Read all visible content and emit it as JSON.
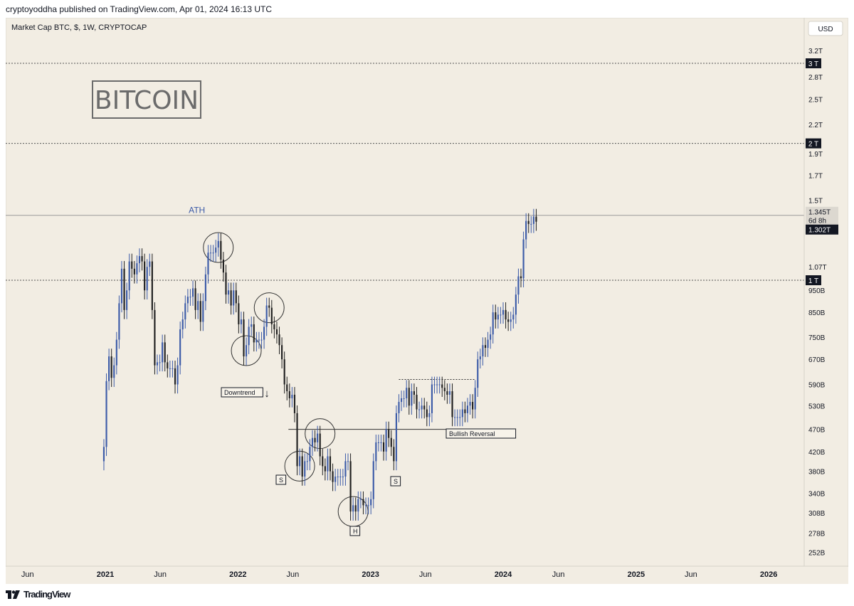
{
  "header": {
    "published": "cryptoyoddha published on TradingView.com, Apr 01, 2024 16:13 UTC"
  },
  "footer": {
    "logo_icon": "tradingview-logo-icon",
    "brand": "TradingView"
  },
  "chart_data": {
    "type": "candlestick",
    "symbol_line": "Market Cap BTC, $, 1W, CRYPTOCAP",
    "currency": "USD",
    "watermark": "BITCOIN",
    "scale": "log",
    "grid": false,
    "y_ticks": [
      "3.2T",
      "2.8T",
      "2.5T",
      "2.2T",
      "1.9T",
      "1.7T",
      "1.5T",
      "1.07T",
      "950B",
      "850B",
      "750B",
      "670B",
      "590B",
      "530B",
      "470B",
      "420B",
      "380B",
      "340B",
      "308B",
      "278B",
      "252B"
    ],
    "y_tick_values": [
      3.2,
      2.8,
      2.5,
      2.2,
      1.9,
      1.7,
      1.5,
      1.07,
      0.95,
      0.85,
      0.75,
      0.67,
      0.59,
      0.53,
      0.47,
      0.42,
      0.38,
      0.34,
      0.308,
      0.278,
      0.252
    ],
    "x_ticks": [
      {
        "label": "Jun",
        "date": "2020-06-01",
        "bold": false
      },
      {
        "label": "2021",
        "date": "2021-01-01",
        "bold": true
      },
      {
        "label": "Jun",
        "date": "2021-06-01",
        "bold": false
      },
      {
        "label": "2022",
        "date": "2022-01-01",
        "bold": true
      },
      {
        "label": "Jun",
        "date": "2022-06-01",
        "bold": false
      },
      {
        "label": "2023",
        "date": "2023-01-01",
        "bold": true
      },
      {
        "label": "Jun",
        "date": "2023-06-01",
        "bold": false
      },
      {
        "label": "2024",
        "date": "2024-01-01",
        "bold": true
      },
      {
        "label": "Jun",
        "date": "2024-06-01",
        "bold": false
      },
      {
        "label": "2025",
        "date": "2025-01-01",
        "bold": true
      },
      {
        "label": "Jun",
        "date": "2025-06-01",
        "bold": false
      },
      {
        "label": "2026",
        "date": "2026-01-01",
        "bold": true
      }
    ],
    "levels": [
      {
        "label": "3 T",
        "value": 3.0,
        "style": "dotted"
      },
      {
        "label": "2 T",
        "value": 2.0,
        "style": "dotted"
      },
      {
        "label": "1 T",
        "value": 1.0,
        "style": "dotted"
      }
    ],
    "last_price": {
      "label": "1.345T",
      "value": 1.345,
      "countdown": "6d 8h"
    },
    "marker_price": {
      "label": "1.302T",
      "value": 1.302
    },
    "up_color": "#3c5ba8",
    "down_color": "#202020",
    "annotations": {
      "ath": "ATH",
      "downtrend": "Downtrend",
      "bullish_reversal": "Bullish Reversal",
      "shoulder_left": "S",
      "head": "H",
      "shoulder_right": "S"
    },
    "weekly_closes": [
      {
        "date": "2020-12-28",
        "close": 0.43
      },
      {
        "date": "2021-01-04",
        "close": 0.6
      },
      {
        "date": "2021-01-11",
        "close": 0.68
      },
      {
        "date": "2021-01-18",
        "close": 0.61
      },
      {
        "date": "2021-01-25",
        "close": 0.65
      },
      {
        "date": "2021-02-01",
        "close": 0.74
      },
      {
        "date": "2021-02-08",
        "close": 0.89
      },
      {
        "date": "2021-02-15",
        "close": 1.06
      },
      {
        "date": "2021-02-22",
        "close": 0.86
      },
      {
        "date": "2021-03-01",
        "close": 0.95
      },
      {
        "date": "2021-03-08",
        "close": 1.1
      },
      {
        "date": "2021-03-15",
        "close": 1.06
      },
      {
        "date": "2021-03-22",
        "close": 1.03
      },
      {
        "date": "2021-03-29",
        "close": 1.09
      },
      {
        "date": "2021-04-05",
        "close": 1.13
      },
      {
        "date": "2021-04-12",
        "close": 1.1
      },
      {
        "date": "2021-04-19",
        "close": 0.95
      },
      {
        "date": "2021-04-26",
        "close": 1.07
      },
      {
        "date": "2021-05-03",
        "close": 1.1
      },
      {
        "date": "2021-05-10",
        "close": 0.86
      },
      {
        "date": "2021-05-17",
        "close": 0.65
      },
      {
        "date": "2021-05-24",
        "close": 0.66
      },
      {
        "date": "2021-05-31",
        "close": 0.66
      },
      {
        "date": "2021-06-07",
        "close": 0.73
      },
      {
        "date": "2021-06-14",
        "close": 0.66
      },
      {
        "date": "2021-06-21",
        "close": 0.64
      },
      {
        "date": "2021-06-28",
        "close": 0.64
      },
      {
        "date": "2021-07-05",
        "close": 0.64
      },
      {
        "date": "2021-07-12",
        "close": 0.59
      },
      {
        "date": "2021-07-19",
        "close": 0.65
      },
      {
        "date": "2021-07-26",
        "close": 0.78
      },
      {
        "date": "2021-08-02",
        "close": 0.82
      },
      {
        "date": "2021-08-09",
        "close": 0.89
      },
      {
        "date": "2021-08-16",
        "close": 0.92
      },
      {
        "date": "2021-08-23",
        "close": 0.92
      },
      {
        "date": "2021-08-30",
        "close": 0.96
      },
      {
        "date": "2021-09-06",
        "close": 0.86
      },
      {
        "date": "2021-09-13",
        "close": 0.9
      },
      {
        "date": "2021-09-20",
        "close": 0.81
      },
      {
        "date": "2021-09-27",
        "close": 0.9
      },
      {
        "date": "2021-10-04",
        "close": 1.03
      },
      {
        "date": "2021-10-11",
        "close": 1.15
      },
      {
        "date": "2021-10-18",
        "close": 1.15
      },
      {
        "date": "2021-10-25",
        "close": 1.15
      },
      {
        "date": "2021-11-01",
        "close": 1.18
      },
      {
        "date": "2021-11-08",
        "close": 1.22
      },
      {
        "date": "2021-11-15",
        "close": 1.11
      },
      {
        "date": "2021-11-22",
        "close": 1.04
      },
      {
        "date": "2021-11-29",
        "close": 0.93
      },
      {
        "date": "2021-12-06",
        "close": 0.95
      },
      {
        "date": "2021-12-13",
        "close": 0.88
      },
      {
        "date": "2021-12-20",
        "close": 0.95
      },
      {
        "date": "2021-12-27",
        "close": 0.89
      },
      {
        "date": "2022-01-03",
        "close": 0.8
      },
      {
        "date": "2022-01-10",
        "close": 0.82
      },
      {
        "date": "2022-01-17",
        "close": 0.68
      },
      {
        "date": "2022-01-24",
        "close": 0.72
      },
      {
        "date": "2022-01-31",
        "close": 0.79
      },
      {
        "date": "2022-02-07",
        "close": 0.8
      },
      {
        "date": "2022-02-14",
        "close": 0.73
      },
      {
        "date": "2022-02-21",
        "close": 0.74
      },
      {
        "date": "2022-02-28",
        "close": 0.74
      },
      {
        "date": "2022-03-07",
        "close": 0.74
      },
      {
        "date": "2022-03-14",
        "close": 0.79
      },
      {
        "date": "2022-03-21",
        "close": 0.88
      },
      {
        "date": "2022-03-28",
        "close": 0.87
      },
      {
        "date": "2022-04-04",
        "close": 0.8
      },
      {
        "date": "2022-04-11",
        "close": 0.78
      },
      {
        "date": "2022-04-18",
        "close": 0.76
      },
      {
        "date": "2022-04-25",
        "close": 0.72
      },
      {
        "date": "2022-05-02",
        "close": 0.67
      },
      {
        "date": "2022-05-09",
        "close": 0.59
      },
      {
        "date": "2022-05-16",
        "close": 0.57
      },
      {
        "date": "2022-05-23",
        "close": 0.55
      },
      {
        "date": "2022-05-30",
        "close": 0.56
      },
      {
        "date": "2022-06-06",
        "close": 0.51
      },
      {
        "date": "2022-06-13",
        "close": 0.39
      },
      {
        "date": "2022-06-20",
        "close": 0.41
      },
      {
        "date": "2022-06-27",
        "close": 0.37
      },
      {
        "date": "2022-07-04",
        "close": 0.4
      },
      {
        "date": "2022-07-11",
        "close": 0.4
      },
      {
        "date": "2022-07-18",
        "close": 0.43
      },
      {
        "date": "2022-07-25",
        "close": 0.45
      },
      {
        "date": "2022-08-01",
        "close": 0.44
      },
      {
        "date": "2022-08-08",
        "close": 0.46
      },
      {
        "date": "2022-08-15",
        "close": 0.41
      },
      {
        "date": "2022-08-22",
        "close": 0.39
      },
      {
        "date": "2022-08-29",
        "close": 0.38
      },
      {
        "date": "2022-09-05",
        "close": 0.41
      },
      {
        "date": "2022-09-12",
        "close": 0.38
      },
      {
        "date": "2022-09-19",
        "close": 0.36
      },
      {
        "date": "2022-09-26",
        "close": 0.37
      },
      {
        "date": "2022-10-03",
        "close": 0.37
      },
      {
        "date": "2022-10-10",
        "close": 0.37
      },
      {
        "date": "2022-10-17",
        "close": 0.37
      },
      {
        "date": "2022-10-24",
        "close": 0.4
      },
      {
        "date": "2022-10-31",
        "close": 0.4
      },
      {
        "date": "2022-11-07",
        "close": 0.31
      },
      {
        "date": "2022-11-14",
        "close": 0.32
      },
      {
        "date": "2022-11-21",
        "close": 0.31
      },
      {
        "date": "2022-11-28",
        "close": 0.33
      },
      {
        "date": "2022-12-05",
        "close": 0.33
      },
      {
        "date": "2022-12-12",
        "close": 0.32
      },
      {
        "date": "2022-12-19",
        "close": 0.32
      },
      {
        "date": "2022-12-26",
        "close": 0.32
      },
      {
        "date": "2023-01-02",
        "close": 0.33
      },
      {
        "date": "2023-01-09",
        "close": 0.4
      },
      {
        "date": "2023-01-16",
        "close": 0.44
      },
      {
        "date": "2023-01-23",
        "close": 0.44
      },
      {
        "date": "2023-01-30",
        "close": 0.44
      },
      {
        "date": "2023-02-06",
        "close": 0.42
      },
      {
        "date": "2023-02-13",
        "close": 0.47
      },
      {
        "date": "2023-02-20",
        "close": 0.45
      },
      {
        "date": "2023-02-27",
        "close": 0.43
      },
      {
        "date": "2023-03-06",
        "close": 0.4
      },
      {
        "date": "2023-03-13",
        "close": 0.51
      },
      {
        "date": "2023-03-20",
        "close": 0.54
      },
      {
        "date": "2023-03-27",
        "close": 0.55
      },
      {
        "date": "2023-04-03",
        "close": 0.55
      },
      {
        "date": "2023-04-10",
        "close": 0.58
      },
      {
        "date": "2023-04-17",
        "close": 0.53
      },
      {
        "date": "2023-04-24",
        "close": 0.57
      },
      {
        "date": "2023-05-01",
        "close": 0.56
      },
      {
        "date": "2023-05-08",
        "close": 0.52
      },
      {
        "date": "2023-05-15",
        "close": 0.52
      },
      {
        "date": "2023-05-22",
        "close": 0.53
      },
      {
        "date": "2023-05-29",
        "close": 0.52
      },
      {
        "date": "2023-06-05",
        "close": 0.5
      },
      {
        "date": "2023-06-12",
        "close": 0.51
      },
      {
        "date": "2023-06-19",
        "close": 0.59
      },
      {
        "date": "2023-06-26",
        "close": 0.59
      },
      {
        "date": "2023-07-03",
        "close": 0.59
      },
      {
        "date": "2023-07-10",
        "close": 0.59
      },
      {
        "date": "2023-07-17",
        "close": 0.58
      },
      {
        "date": "2023-07-24",
        "close": 0.57
      },
      {
        "date": "2023-07-31",
        "close": 0.56
      },
      {
        "date": "2023-08-07",
        "close": 0.57
      },
      {
        "date": "2023-08-14",
        "close": 0.5
      },
      {
        "date": "2023-08-21",
        "close": 0.5
      },
      {
        "date": "2023-08-28",
        "close": 0.5
      },
      {
        "date": "2023-09-04",
        "close": 0.5
      },
      {
        "date": "2023-09-11",
        "close": 0.52
      },
      {
        "date": "2023-09-18",
        "close": 0.51
      },
      {
        "date": "2023-09-25",
        "close": 0.53
      },
      {
        "date": "2023-10-02",
        "close": 0.54
      },
      {
        "date": "2023-10-09",
        "close": 0.52
      },
      {
        "date": "2023-10-16",
        "close": 0.58
      },
      {
        "date": "2023-10-23",
        "close": 0.67
      },
      {
        "date": "2023-10-30",
        "close": 0.68
      },
      {
        "date": "2023-11-06",
        "close": 0.72
      },
      {
        "date": "2023-11-13",
        "close": 0.71
      },
      {
        "date": "2023-11-20",
        "close": 0.74
      },
      {
        "date": "2023-11-27",
        "close": 0.76
      },
      {
        "date": "2023-12-04",
        "close": 0.85
      },
      {
        "date": "2023-12-11",
        "close": 0.82
      },
      {
        "date": "2023-12-18",
        "close": 0.84
      },
      {
        "date": "2023-12-25",
        "close": 0.84
      },
      {
        "date": "2024-01-01",
        "close": 0.86
      },
      {
        "date": "2024-01-08",
        "close": 0.82
      },
      {
        "date": "2024-01-15",
        "close": 0.81
      },
      {
        "date": "2024-01-22",
        "close": 0.82
      },
      {
        "date": "2024-01-29",
        "close": 0.84
      },
      {
        "date": "2024-02-05",
        "close": 0.93
      },
      {
        "date": "2024-02-12",
        "close": 1.02
      },
      {
        "date": "2024-02-19",
        "close": 1.01
      },
      {
        "date": "2024-02-26",
        "close": 1.23
      },
      {
        "date": "2024-03-04",
        "close": 1.35
      },
      {
        "date": "2024-03-11",
        "close": 1.33
      },
      {
        "date": "2024-03-18",
        "close": 1.33
      },
      {
        "date": "2024-03-25",
        "close": 1.38
      },
      {
        "date": "2024-04-01",
        "close": 1.345
      }
    ]
  }
}
